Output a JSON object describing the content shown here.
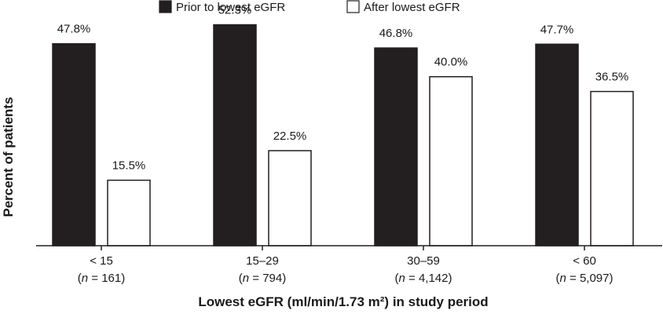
{
  "chart_data": {
    "type": "bar",
    "title": "",
    "xlabel": "Lowest eGFR (ml/min/1.73 m²) in study period",
    "ylabel": "Percent of patients",
    "ylim": [
      0,
      55
    ],
    "grid": false,
    "legend_position": "top-center",
    "categories": [
      {
        "label": "< 15",
        "n_prefix": "(",
        "n_var": "n",
        "n_value": " = 161)"
      },
      {
        "label": "15–29",
        "n_prefix": "(",
        "n_var": "n",
        "n_value": " = 794)"
      },
      {
        "label": "30–59",
        "n_prefix": "(",
        "n_var": "n",
        "n_value": " = 4,142)"
      },
      {
        "label": "< 60",
        "n_prefix": "(",
        "n_var": "n",
        "n_value": " = 5,097)"
      }
    ],
    "series": [
      {
        "name": "Prior to lowest eGFR",
        "color": "#231f20",
        "values": [
          47.8,
          52.3,
          46.8,
          47.7
        ],
        "labels": [
          "47.8%",
          "52.3%",
          "46.8%",
          "47.7%"
        ]
      },
      {
        "name": "After lowest eGFR",
        "color": "#ffffff",
        "values": [
          15.5,
          22.5,
          40.0,
          36.5
        ],
        "labels": [
          "15.5%",
          "22.5%",
          "40.0%",
          "36.5%"
        ]
      }
    ]
  }
}
